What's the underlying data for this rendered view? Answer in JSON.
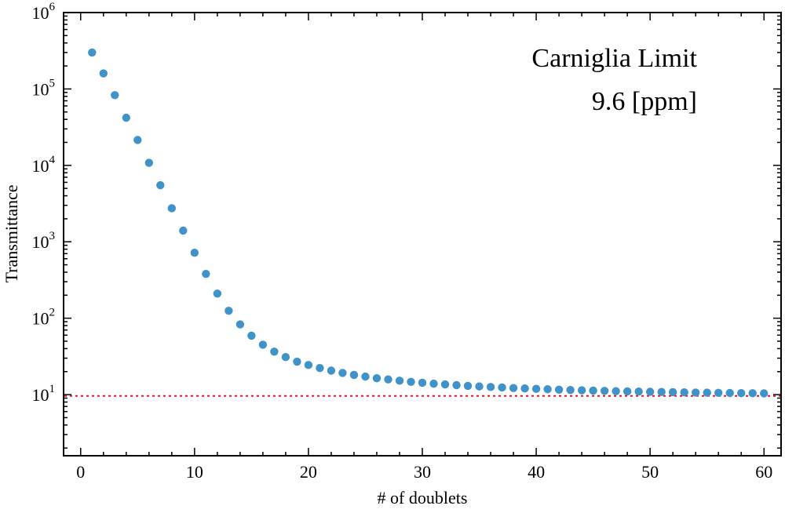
{
  "chart_data": {
    "type": "scatter",
    "title": "",
    "xlabel": "# of doublets",
    "ylabel": "Transmittance",
    "xlim": [
      -1.5,
      61.5
    ],
    "ylim_log10": [
      0.2,
      6.0
    ],
    "yscale": "log",
    "grid": false,
    "x_ticks": [
      0,
      10,
      20,
      30,
      40,
      50,
      60
    ],
    "x_tick_labels": [
      "0",
      "10",
      "20",
      "30",
      "40",
      "50",
      "60"
    ],
    "y_ticks": [
      {
        "base": "10",
        "exp": "1",
        "value": 10
      },
      {
        "base": "10",
        "exp": "2",
        "value": 100
      },
      {
        "base": "10",
        "exp": "3",
        "value": 1000
      },
      {
        "base": "10",
        "exp": "4",
        "value": 10000
      },
      {
        "base": "10",
        "exp": "5",
        "value": 100000
      },
      {
        "base": "10",
        "exp": "6",
        "value": 1000000
      }
    ],
    "series": [
      {
        "name": "Transmittance",
        "color": "#3f93c9",
        "x": [
          1,
          2,
          3,
          4,
          5,
          6,
          7,
          8,
          9,
          10,
          11,
          12,
          13,
          14,
          15,
          16,
          17,
          18,
          19,
          20,
          21,
          22,
          23,
          24,
          25,
          26,
          27,
          28,
          29,
          30,
          31,
          32,
          33,
          34,
          35,
          36,
          37,
          38,
          39,
          40,
          41,
          42,
          43,
          44,
          45,
          46,
          47,
          48,
          49,
          50,
          51,
          52,
          53,
          54,
          55,
          56,
          57,
          58,
          59,
          60
        ],
        "y": [
          300000,
          160000,
          83000,
          42000,
          21500,
          10800,
          5500,
          2750,
          1400,
          720,
          380,
          210,
          125,
          83,
          59,
          45,
          36.5,
          31,
          27,
          24.4,
          22.3,
          20.6,
          19.2,
          18.1,
          17.2,
          16.4,
          15.8,
          15.2,
          14.7,
          14.3,
          13.9,
          13.6,
          13.3,
          13.0,
          12.8,
          12.6,
          12.4,
          12.2,
          12.05,
          11.9,
          11.75,
          11.6,
          11.5,
          11.4,
          11.3,
          11.2,
          11.1,
          11.02,
          10.95,
          10.88,
          10.82,
          10.76,
          10.7,
          10.65,
          10.6,
          10.55,
          10.5,
          10.46,
          10.42,
          10.38
        ]
      }
    ],
    "reference_line": {
      "label": "Carniglia Limit",
      "value": 9.6,
      "units": "[ppm]",
      "color": "#e8141b",
      "style": "dotted"
    },
    "annotations": [
      {
        "text": "Carniglia Limit",
        "position": "top-right"
      },
      {
        "text": "9.6 [ppm]",
        "position": "top-right"
      }
    ]
  }
}
